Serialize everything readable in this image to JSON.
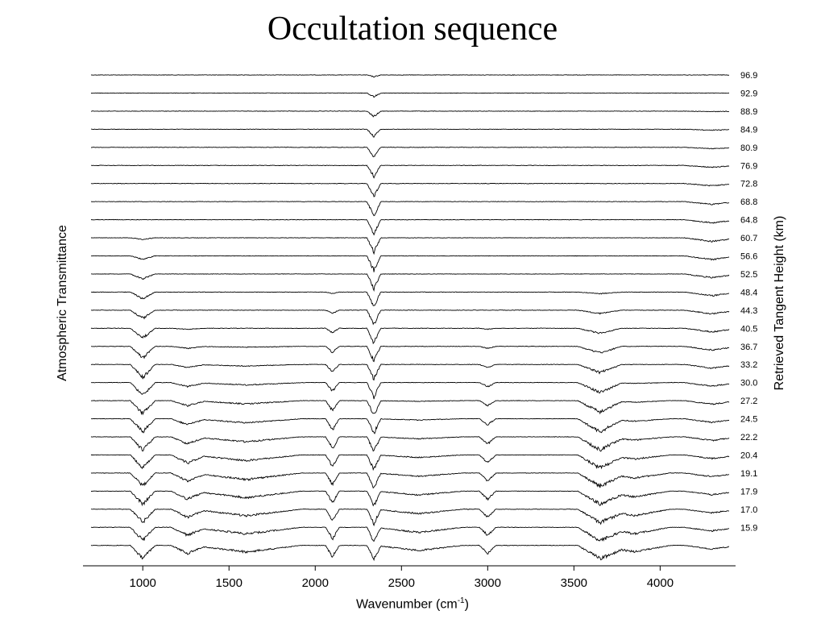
{
  "title": "Occultation sequence",
  "chart_data": {
    "type": "line",
    "title": "Occultation sequence",
    "xlabel_main": "Wavenumber (cm",
    "xlabel_sup": "-1",
    "xlabel_close": ")",
    "ylabel_left": "Atmospheric Transmittance",
    "ylabel_right": "Retrieved Tangent Height (km)",
    "xlim": [
      700,
      4400
    ],
    "xticks": [
      1000,
      1500,
      2000,
      2500,
      3000,
      3500,
      4000
    ],
    "tangent_heights": [
      "96.9",
      "92.9",
      "88.9",
      "84.9",
      "80.9",
      "76.9",
      "72.8",
      "68.8",
      "64.8",
      "60.7",
      "56.6",
      "52.5",
      "48.4",
      "44.3",
      "40.5",
      "36.7",
      "33.2",
      "30.0",
      "27.2",
      "24.5",
      "22.2",
      "20.4",
      "19.1",
      "17.9",
      "17.0",
      "15.9"
    ],
    "extra_unlabeled_traces": 1,
    "grid": false,
    "legend": "none"
  }
}
